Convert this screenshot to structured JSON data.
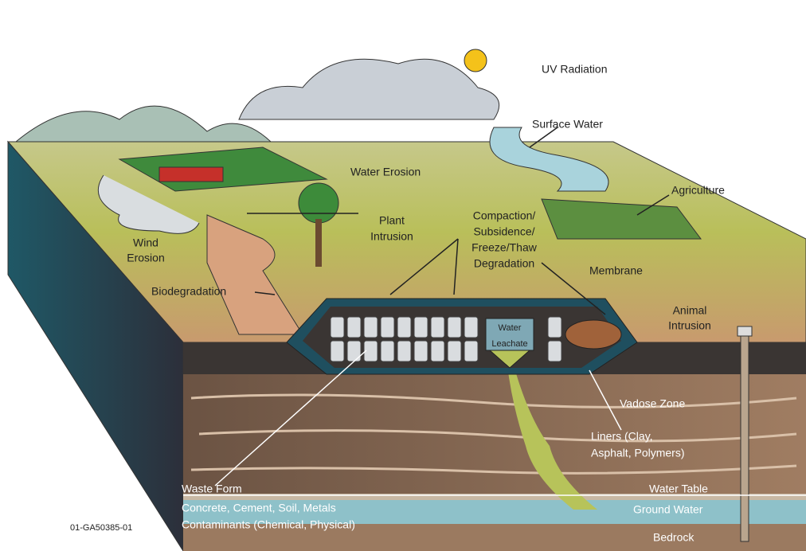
{
  "labels": {
    "uv_radiation": "UV Radiation",
    "surface_water": "Surface Water",
    "water_erosion": "Water Erosion",
    "agriculture": "Agriculture",
    "plant_intrusion": [
      "Plant",
      "Intrusion"
    ],
    "compaction": [
      "Compaction/",
      "Subsidence/",
      "Freeze/Thaw",
      "Degradation"
    ],
    "wind_erosion": [
      "Wind",
      "Erosion"
    ],
    "membrane": "Membrane",
    "biodegradation": "Biodegradation",
    "animal_intrusion": [
      "Animal",
      "Intrusion"
    ],
    "leachate": [
      "Water",
      "Leachate"
    ],
    "vadose_zone": "Vadose Zone",
    "liners": [
      "Liners (Clay,",
      "Asphalt, Polymers)"
    ],
    "waste_form": [
      "Waste Form",
      "Concrete, Cement, Soil, Metals",
      "Contaminants (Chemical, Physical)"
    ],
    "water_table": "Water Table",
    "ground_water": "Ground Water",
    "bedrock": "Bedrock",
    "figure_id": "01-GA50385-01"
  }
}
